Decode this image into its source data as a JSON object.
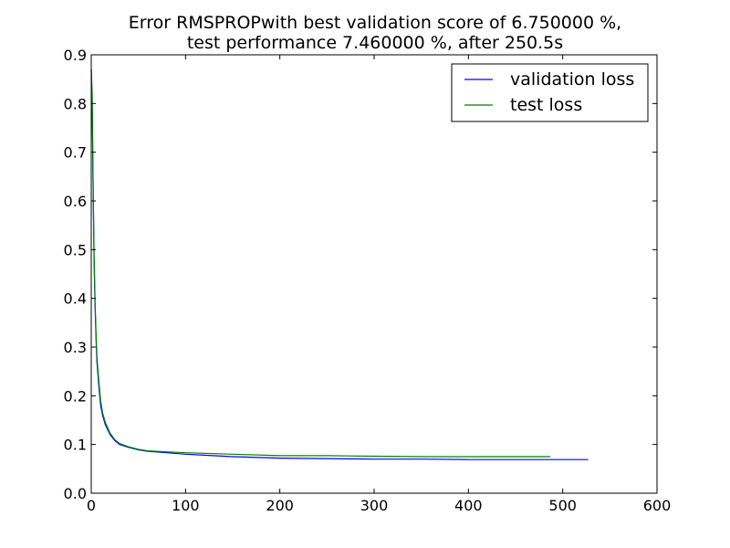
{
  "chart_data": {
    "type": "line",
    "title": "Error RMSPROPwith best validation score of 6.750000 %,",
    "subtitle": "test performance 7.460000 %, after 250.5s",
    "xlabel": "",
    "ylabel": "",
    "xlim": [
      0,
      600
    ],
    "ylim": [
      0.0,
      0.9
    ],
    "xticks": [
      "0",
      "100",
      "200",
      "300",
      "400",
      "500",
      "600"
    ],
    "yticks": [
      "0.0",
      "0.1",
      "0.2",
      "0.3",
      "0.4",
      "0.5",
      "0.6",
      "0.7",
      "0.8",
      "0.9"
    ],
    "grid": false,
    "legend_position": "top-right",
    "series": [
      {
        "name": "validation loss",
        "color": "#0000ff",
        "x": [
          0,
          1,
          2,
          3,
          4,
          5,
          6,
          8,
          10,
          12,
          15,
          20,
          25,
          30,
          40,
          50,
          60,
          80,
          100,
          120,
          150,
          200,
          250,
          300,
          350,
          400,
          450,
          500,
          527
        ],
        "y": [
          0.87,
          0.8,
          0.62,
          0.48,
          0.39,
          0.32,
          0.27,
          0.22,
          0.18,
          0.16,
          0.14,
          0.12,
          0.108,
          0.1,
          0.094,
          0.089,
          0.086,
          0.083,
          0.08,
          0.078,
          0.075,
          0.072,
          0.071,
          0.07,
          0.07,
          0.069,
          0.069,
          0.069,
          0.069
        ]
      },
      {
        "name": "test loss",
        "color": "#008000",
        "x": [
          0,
          1,
          2,
          3,
          4,
          5,
          6,
          8,
          10,
          12,
          15,
          20,
          25,
          30,
          40,
          50,
          60,
          80,
          100,
          120,
          150,
          200,
          250,
          300,
          350,
          400,
          450,
          487
        ],
        "y": [
          0.87,
          0.82,
          0.63,
          0.49,
          0.4,
          0.33,
          0.28,
          0.23,
          0.19,
          0.165,
          0.145,
          0.123,
          0.11,
          0.102,
          0.095,
          0.09,
          0.087,
          0.085,
          0.083,
          0.082,
          0.08,
          0.077,
          0.077,
          0.076,
          0.075,
          0.075,
          0.075,
          0.075
        ]
      }
    ]
  }
}
